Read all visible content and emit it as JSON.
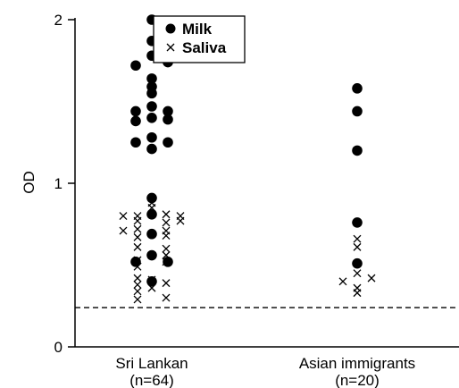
{
  "chart_data": {
    "type": "scatter",
    "title": "",
    "xlabel": "",
    "ylabel": "OD",
    "ylim": [
      0,
      2
    ],
    "yticks": [
      0,
      1,
      2
    ],
    "categories": [
      {
        "line1": "Sri Lankan",
        "line2": "(n=64)"
      },
      {
        "line1": "Asian immigrants",
        "line2": "(n=20)"
      }
    ],
    "legend": {
      "position": "top",
      "entries": [
        {
          "label": "Milk",
          "marker": "dot"
        },
        {
          "label": "Saliva",
          "marker": "cross"
        }
      ]
    },
    "reference_line": {
      "y": 0.24,
      "style": "dashed"
    },
    "series": [
      {
        "name": "Milk",
        "marker": "dot",
        "points": [
          {
            "group": "Sri Lankan",
            "col": 0,
            "values": [
              2.0,
              1.87,
              1.78,
              1.64,
              1.59,
              1.55,
              1.47,
              1.4,
              1.28,
              1.21,
              0.91,
              0.81,
              0.69,
              0.56,
              0.4
            ]
          },
          {
            "group": "Sri Lankan",
            "col": -1,
            "values": [
              1.72,
              1.44,
              1.38,
              1.25,
              0.52
            ]
          },
          {
            "group": "Sri Lankan",
            "col": 1,
            "values": [
              1.74,
              1.44,
              1.39,
              1.25,
              0.52
            ]
          },
          {
            "group": "Asian immigrants",
            "col": 0,
            "values": [
              1.58,
              1.44,
              1.2,
              0.76,
              0.51
            ]
          }
        ]
      },
      {
        "name": "Saliva",
        "marker": "cross",
        "points": [
          {
            "group": "Sri Lankan",
            "col": -2,
            "values": [
              0.8,
              0.71
            ]
          },
          {
            "group": "Sri Lankan",
            "col": -1,
            "values": [
              0.8,
              0.77,
              0.72,
              0.67,
              0.61,
              0.53,
              0.49,
              0.42,
              0.38,
              0.34,
              0.29
            ]
          },
          {
            "group": "Sri Lankan",
            "col": 0,
            "values": [
              0.88,
              0.85,
              0.41,
              0.36
            ]
          },
          {
            "group": "Sri Lankan",
            "col": 1,
            "values": [
              0.81,
              0.76,
              0.71,
              0.68,
              0.6,
              0.56,
              0.52,
              0.39,
              0.3
            ]
          },
          {
            "group": "Sri Lankan",
            "col": 2,
            "values": [
              0.8,
              0.77
            ]
          },
          {
            "group": "Asian immigrants",
            "col": -1,
            "values": [
              0.4
            ]
          },
          {
            "group": "Asian immigrants",
            "col": 0,
            "values": [
              0.66,
              0.61,
              0.45,
              0.36,
              0.33
            ]
          },
          {
            "group": "Asian immigrants",
            "col": 1,
            "values": [
              0.42
            ]
          }
        ]
      }
    ]
  }
}
